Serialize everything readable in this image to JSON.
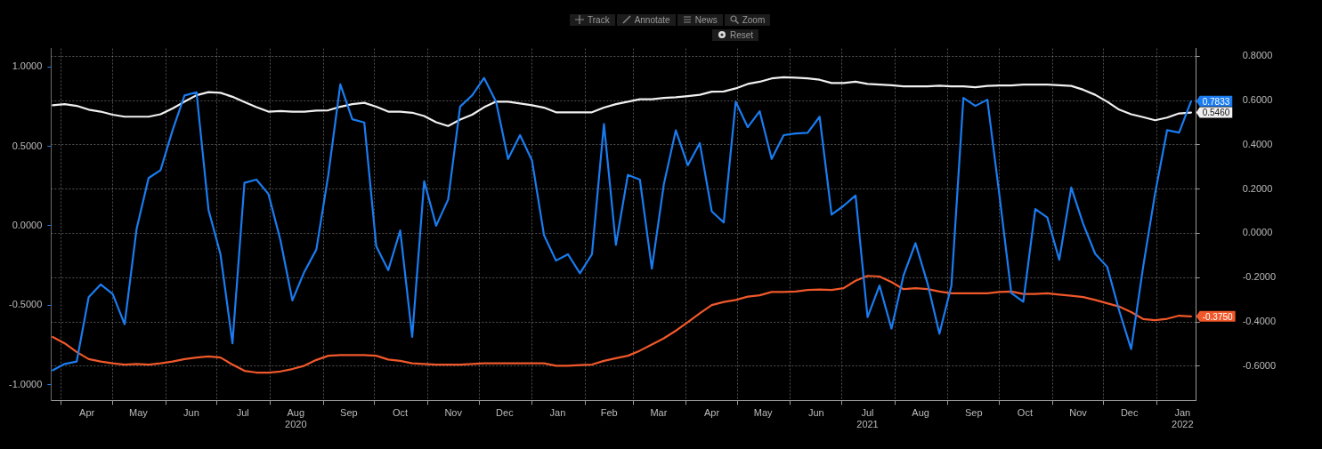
{
  "chart_data": {
    "type": "line",
    "annotations": [
      "Track",
      "Annotate",
      "News",
      "Zoom",
      "Reset"
    ],
    "x": [
      "2020-03-27",
      "2020-04-03",
      "2020-04-10",
      "2020-04-17",
      "2020-04-24",
      "2020-05-01",
      "2020-05-08",
      "2020-05-15",
      "2020-05-22",
      "2020-05-29",
      "2020-06-05",
      "2020-06-12",
      "2020-06-19",
      "2020-06-26",
      "2020-07-03",
      "2020-07-10",
      "2020-07-17",
      "2020-07-24",
      "2020-07-31",
      "2020-08-07",
      "2020-08-14",
      "2020-08-21",
      "2020-08-28",
      "2020-09-04",
      "2020-09-11",
      "2020-09-18",
      "2020-09-25",
      "2020-10-02",
      "2020-10-09",
      "2020-10-16",
      "2020-10-23",
      "2020-10-30",
      "2020-11-06",
      "2020-11-13",
      "2020-11-20",
      "2020-11-27",
      "2020-12-04",
      "2020-12-11",
      "2020-12-18",
      "2020-12-25",
      "2021-01-01",
      "2021-01-08",
      "2021-01-15",
      "2021-01-22",
      "2021-01-29",
      "2021-02-05",
      "2021-02-12",
      "2021-02-19",
      "2021-02-26",
      "2021-03-05",
      "2021-03-12",
      "2021-03-19",
      "2021-03-26",
      "2021-04-02",
      "2021-04-09",
      "2021-04-16",
      "2021-04-23",
      "2021-04-30",
      "2021-05-07",
      "2021-05-14",
      "2021-05-21",
      "2021-05-28",
      "2021-06-04",
      "2021-06-11",
      "2021-06-18",
      "2021-06-25",
      "2021-07-02",
      "2021-07-09",
      "2021-07-16",
      "2021-07-23",
      "2021-07-30",
      "2021-08-06",
      "2021-08-13",
      "2021-08-20",
      "2021-08-27",
      "2021-09-03",
      "2021-09-10",
      "2021-09-17",
      "2021-09-24",
      "2021-10-01",
      "2021-10-08",
      "2021-10-15",
      "2021-10-22",
      "2021-10-29",
      "2021-11-05",
      "2021-11-12",
      "2021-11-19",
      "2021-11-26",
      "2021-12-03",
      "2021-12-10",
      "2021-12-17",
      "2021-12-24",
      "2021-12-31",
      "2022-01-07",
      "2022-01-14",
      "2022-01-21"
    ],
    "xlim": [
      "2020-03-26",
      "2022-01-24"
    ],
    "xticks": [
      {
        "value": "2020-04-01",
        "label": null
      },
      {
        "value": "2020-04-16",
        "label": "Apr"
      },
      {
        "value": "2020-05-01",
        "label": null
      },
      {
        "value": "2020-05-16",
        "label": "May"
      },
      {
        "value": "2020-06-01",
        "label": null
      },
      {
        "value": "2020-06-16",
        "label": "Jun"
      },
      {
        "value": "2020-07-01",
        "label": null
      },
      {
        "value": "2020-07-16",
        "label": "Jul"
      },
      {
        "value": "2020-08-01",
        "label": null
      },
      {
        "value": "2020-08-16",
        "label": "Aug\n2020"
      },
      {
        "value": "2020-09-01",
        "label": null
      },
      {
        "value": "2020-09-16",
        "label": "Sep"
      },
      {
        "value": "2020-10-01",
        "label": null
      },
      {
        "value": "2020-10-16",
        "label": "Oct"
      },
      {
        "value": "2020-11-01",
        "label": null
      },
      {
        "value": "2020-11-16",
        "label": "Nov"
      },
      {
        "value": "2020-12-01",
        "label": null
      },
      {
        "value": "2020-12-16",
        "label": "Dec"
      },
      {
        "value": "2021-01-01",
        "label": null
      },
      {
        "value": "2021-01-16",
        "label": "Jan"
      },
      {
        "value": "2021-02-01",
        "label": null
      },
      {
        "value": "2021-02-15",
        "label": "Feb"
      },
      {
        "value": "2021-03-01",
        "label": null
      },
      {
        "value": "2021-03-16",
        "label": "Mar"
      },
      {
        "value": "2021-04-01",
        "label": null
      },
      {
        "value": "2021-04-16",
        "label": "Apr"
      },
      {
        "value": "2021-05-01",
        "label": null
      },
      {
        "value": "2021-05-16",
        "label": "May"
      },
      {
        "value": "2021-06-01",
        "label": null
      },
      {
        "value": "2021-06-16",
        "label": "Jun"
      },
      {
        "value": "2021-07-01",
        "label": null
      },
      {
        "value": "2021-07-16",
        "label": "Jul\n2021"
      },
      {
        "value": "2021-08-01",
        "label": null
      },
      {
        "value": "2021-08-16",
        "label": "Aug"
      },
      {
        "value": "2021-09-01",
        "label": null
      },
      {
        "value": "2021-09-16",
        "label": "Sep"
      },
      {
        "value": "2021-10-01",
        "label": null
      },
      {
        "value": "2021-10-16",
        "label": "Oct"
      },
      {
        "value": "2021-11-01",
        "label": null
      },
      {
        "value": "2021-11-16",
        "label": "Nov"
      },
      {
        "value": "2021-12-01",
        "label": null
      },
      {
        "value": "2021-12-16",
        "label": "Dec"
      },
      {
        "value": "2022-01-01",
        "label": null
      },
      {
        "value": "2022-01-16",
        "label": "Jan\n2022"
      }
    ],
    "ylim": [
      -1.1,
      1.115
    ],
    "yticks": [
      {
        "value": -1,
        "label": "-1.0000"
      },
      {
        "value": -0.5,
        "label": "-0.5000"
      },
      {
        "value": 0,
        "label": "0.0000"
      },
      {
        "value": 0.5,
        "label": "0.5000"
      },
      {
        "value": 1,
        "label": "1.0000"
      }
    ],
    "y2lim": [
      -0.755,
      0.835
    ],
    "y2ticks": [
      {
        "value": -0.6,
        "label": "-0.6000"
      },
      {
        "value": -0.4,
        "label": "-0.4000"
      },
      {
        "value": -0.2,
        "label": "-0.2000"
      },
      {
        "value": 0,
        "label": "0.0000"
      },
      {
        "value": 0.2,
        "label": "0.2000"
      },
      {
        "value": 0.4,
        "label": "0.4000"
      },
      {
        "value": 0.6,
        "label": "0.6000"
      },
      {
        "value": 0.8,
        "label": "0.8000"
      }
    ],
    "grid": true,
    "series": [
      {
        "color": "#1a7cf0",
        "values": [
          -0.91,
          -0.87,
          -0.855,
          -0.45,
          -0.37,
          -0.43,
          -0.62,
          -0.02,
          0.3,
          0.35,
          0.6,
          0.82,
          0.84,
          0.1,
          -0.18,
          -0.74,
          0.27,
          0.29,
          0.2,
          -0.09,
          -0.47,
          -0.29,
          -0.15,
          0.32,
          0.89,
          0.67,
          0.65,
          -0.13,
          -0.28,
          -0.03,
          -0.7,
          0.28,
          0.0,
          0.165,
          0.75,
          0.82,
          0.93,
          0.78,
          0.42,
          0.57,
          0.41,
          -0.06,
          -0.22,
          -0.18,
          -0.3,
          -0.18,
          0.64,
          -0.12,
          0.32,
          0.29,
          -0.27,
          0.26,
          0.6,
          0.38,
          0.52,
          0.09,
          0.02,
          0.78,
          0.62,
          0.72,
          0.42,
          0.57,
          0.58,
          0.585,
          0.686,
          0.07,
          0.125,
          0.19,
          -0.576,
          -0.377,
          -0.648,
          -0.314,
          -0.11,
          -0.361,
          -0.68,
          -0.377,
          0.804,
          0.754,
          0.793,
          0.196,
          -0.424,
          -0.479,
          0.105,
          0.052,
          -0.215,
          0.24,
          0.011,
          -0.177,
          -0.259,
          -0.534,
          -0.777,
          -0.259,
          0.204,
          0.601,
          0.586,
          0.7833
        ],
        "value_labels": [
          null,
          null,
          null,
          null,
          null,
          null,
          null,
          null,
          null,
          null,
          null,
          null,
          null,
          null,
          null,
          null,
          null,
          null,
          null,
          null,
          null,
          null,
          null,
          null,
          null,
          null,
          null,
          null,
          null,
          null,
          null,
          null,
          null,
          null,
          null,
          null,
          null,
          null,
          null,
          null,
          null,
          null,
          null,
          null,
          null,
          null,
          null,
          null,
          null,
          null,
          null,
          null,
          null,
          null,
          null,
          null,
          null,
          null,
          null,
          null,
          null,
          null,
          null,
          null,
          null,
          null,
          null,
          null,
          null,
          null,
          null,
          null,
          null,
          null,
          null,
          null,
          null,
          null,
          null,
          null,
          null,
          null,
          null,
          null,
          null,
          null,
          null,
          null,
          null,
          null,
          null,
          null,
          null,
          null,
          null,
          "0.7833"
        ]
      },
      {
        "color": "#f0f0f0",
        "axis": "y2",
        "values": [
          0.579,
          0.584,
          0.576,
          0.559,
          0.55,
          0.536,
          0.527,
          0.527,
          0.527,
          0.538,
          0.564,
          0.595,
          0.624,
          0.638,
          0.635,
          0.617,
          0.593,
          0.57,
          0.55,
          0.553,
          0.55,
          0.55,
          0.555,
          0.556,
          0.572,
          0.584,
          0.59,
          0.572,
          0.55,
          0.55,
          0.545,
          0.53,
          0.502,
          0.485,
          0.514,
          0.536,
          0.57,
          0.595,
          0.595,
          0.587,
          0.579,
          0.568,
          0.547,
          0.547,
          0.547,
          0.547,
          0.568,
          0.584,
          0.595,
          0.606,
          0.606,
          0.612,
          0.615,
          0.62,
          0.626,
          0.64,
          0.641,
          0.655,
          0.675,
          0.685,
          0.7,
          0.705,
          0.703,
          0.7,
          0.694,
          0.679,
          0.679,
          0.685,
          0.675,
          0.672,
          0.669,
          0.664,
          0.664,
          0.664,
          0.667,
          0.664,
          0.664,
          0.66,
          0.666,
          0.668,
          0.668,
          0.672,
          0.672,
          0.672,
          0.669,
          0.666,
          0.649,
          0.626,
          0.595,
          0.559,
          0.538,
          0.525,
          0.511,
          0.523,
          0.542,
          0.546
        ],
        "value_labels": [
          null,
          null,
          null,
          null,
          null,
          null,
          null,
          null,
          null,
          null,
          null,
          null,
          null,
          null,
          null,
          null,
          null,
          null,
          null,
          null,
          null,
          null,
          null,
          null,
          null,
          null,
          null,
          null,
          null,
          null,
          null,
          null,
          null,
          null,
          null,
          null,
          null,
          null,
          null,
          null,
          null,
          null,
          null,
          null,
          null,
          null,
          null,
          null,
          null,
          null,
          null,
          null,
          null,
          null,
          null,
          null,
          null,
          null,
          null,
          null,
          null,
          null,
          null,
          null,
          null,
          null,
          null,
          null,
          null,
          null,
          null,
          null,
          null,
          null,
          null,
          null,
          null,
          null,
          null,
          null,
          null,
          null,
          null,
          null,
          null,
          null,
          null,
          null,
          null,
          null,
          null,
          null,
          null,
          null,
          null,
          "0.5460"
        ]
      },
      {
        "color": "#f0582a",
        "axis": "y2",
        "values": [
          -0.468,
          -0.497,
          -0.536,
          -0.568,
          -0.579,
          -0.587,
          -0.593,
          -0.59,
          -0.593,
          -0.587,
          -0.579,
          -0.568,
          -0.561,
          -0.556,
          -0.561,
          -0.593,
          -0.621,
          -0.629,
          -0.629,
          -0.624,
          -0.613,
          -0.598,
          -0.572,
          -0.553,
          -0.55,
          -0.55,
          -0.55,
          -0.553,
          -0.57,
          -0.576,
          -0.587,
          -0.59,
          -0.593,
          -0.593,
          -0.593,
          -0.59,
          -0.587,
          -0.587,
          -0.587,
          -0.587,
          -0.587,
          -0.587,
          -0.598,
          -0.598,
          -0.595,
          -0.593,
          -0.576,
          -0.564,
          -0.553,
          -0.53,
          -0.502,
          -0.474,
          -0.44,
          -0.401,
          -0.361,
          -0.324,
          -0.31,
          -0.301,
          -0.286,
          -0.28,
          -0.265,
          -0.265,
          -0.263,
          -0.256,
          -0.254,
          -0.256,
          -0.248,
          -0.214,
          -0.192,
          -0.195,
          -0.22,
          -0.252,
          -0.248,
          -0.252,
          -0.263,
          -0.271,
          -0.271,
          -0.271,
          -0.271,
          -0.265,
          -0.263,
          -0.274,
          -0.274,
          -0.271,
          -0.277,
          -0.282,
          -0.288,
          -0.301,
          -0.316,
          -0.331,
          -0.356,
          -0.387,
          -0.392,
          -0.386,
          -0.372,
          -0.375
        ],
        "value_labels": [
          null,
          null,
          null,
          null,
          null,
          null,
          null,
          null,
          null,
          null,
          null,
          null,
          null,
          null,
          null,
          null,
          null,
          null,
          null,
          null,
          null,
          null,
          null,
          null,
          null,
          null,
          null,
          null,
          null,
          null,
          null,
          null,
          null,
          null,
          null,
          null,
          null,
          null,
          null,
          null,
          null,
          null,
          null,
          null,
          null,
          null,
          null,
          null,
          null,
          null,
          null,
          null,
          null,
          null,
          null,
          null,
          null,
          null,
          null,
          null,
          null,
          null,
          null,
          null,
          null,
          null,
          null,
          null,
          null,
          null,
          null,
          null,
          null,
          null,
          null,
          null,
          null,
          null,
          null,
          null,
          null,
          null,
          null,
          null,
          null,
          null,
          null,
          null,
          null,
          null,
          null,
          null,
          null,
          null,
          null,
          "-0.3750"
        ]
      }
    ]
  }
}
